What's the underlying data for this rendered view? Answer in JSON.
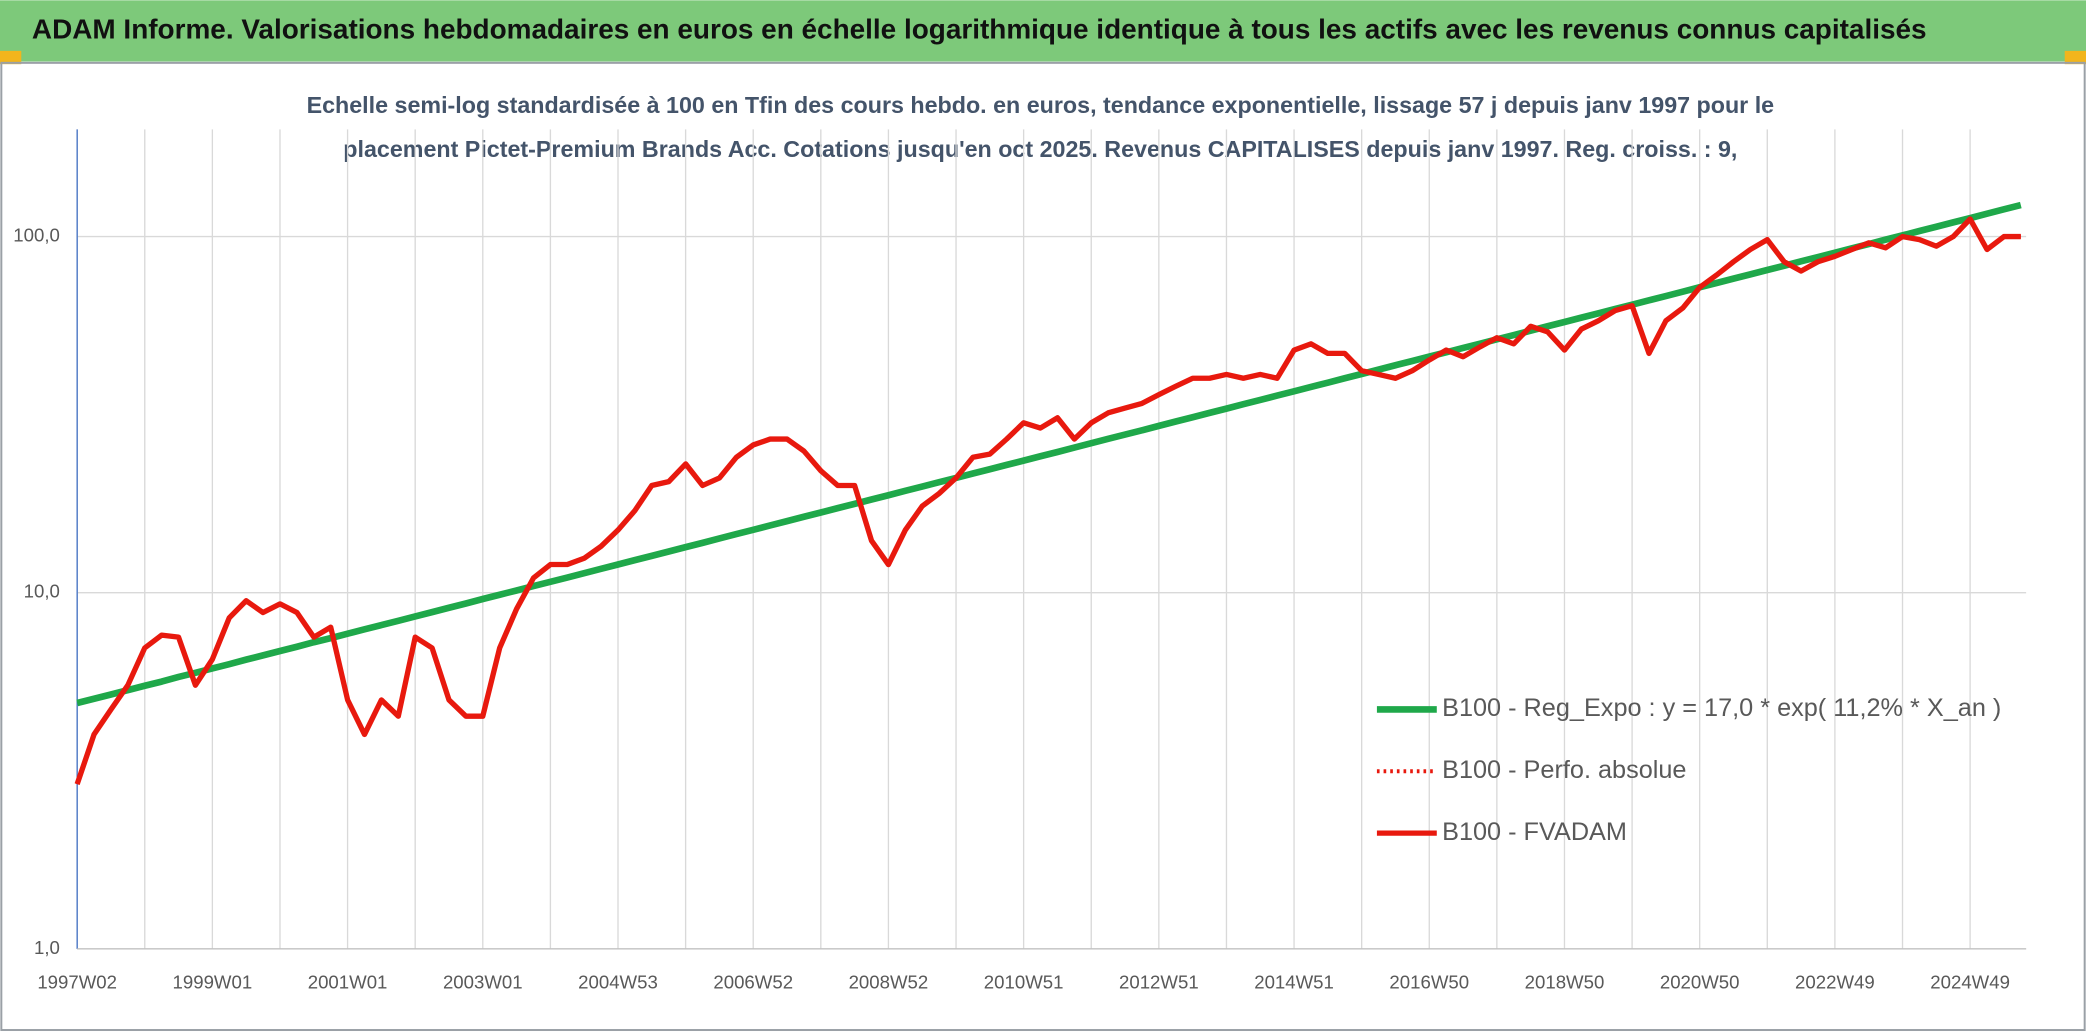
{
  "chart_data": {
    "type": "line",
    "title": "ADAM Informe. Valorisations hebdomadaires en euros en échelle logarithmique identique à tous les actifs avec les revenus connus capitalisés",
    "subtitle_lines": [
      "Echelle semi-log standardisée à 100 en Tfin des cours hebdo. en euros, tendance exponentielle, lissage 57 j depuis janv 1997 pour le",
      "placement Pictet-Premium Brands Acc. Cotations jusqu'en oct 2025. Revenus CAPITALISES depuis janv 1997. Reg. croiss. : 9,"
    ],
    "log_scale": true,
    "grid": true,
    "legend_position": "lower right",
    "ylim": [
      1,
      200
    ],
    "yticks": [
      {
        "value": 1,
        "label": "1,0"
      },
      {
        "value": 10,
        "label": "10,0"
      },
      {
        "value": 100,
        "label": "100,0"
      }
    ],
    "categories": [
      "1997W02",
      null,
      null,
      null,
      null,
      null,
      null,
      null,
      "1999W01",
      null,
      null,
      null,
      null,
      null,
      null,
      null,
      "2001W01",
      null,
      null,
      null,
      null,
      null,
      null,
      null,
      "2003W01",
      null,
      null,
      null,
      null,
      null,
      null,
      null,
      "2004W53",
      null,
      null,
      null,
      null,
      null,
      null,
      null,
      "2006W52",
      null,
      null,
      null,
      null,
      null,
      null,
      null,
      "2008W52",
      null,
      null,
      null,
      null,
      null,
      null,
      null,
      "2010W51",
      null,
      null,
      null,
      null,
      null,
      null,
      null,
      "2012W51",
      null,
      null,
      null,
      null,
      null,
      null,
      null,
      "2014W51",
      null,
      null,
      null,
      null,
      null,
      null,
      null,
      "2016W50",
      null,
      null,
      null,
      null,
      null,
      null,
      null,
      "2018W50",
      null,
      null,
      null,
      null,
      null,
      null,
      null,
      "2020W50",
      null,
      null,
      null,
      null,
      null,
      null,
      null,
      "2022W49",
      null,
      null,
      null,
      null,
      null,
      null,
      null,
      "2024W49",
      null,
      null,
      null
    ],
    "series": [
      {
        "name": "B100 - Reg_Expo : y = 17,0 * exp( 11,2% *  X_an )",
        "color": "#1fa84a",
        "style": "solid",
        "width": 5,
        "values": [
          4.9,
          5.04,
          5.18,
          5.33,
          5.48,
          5.63,
          5.8,
          5.96,
          6.13,
          6.3,
          6.49,
          6.67,
          6.86,
          7.05,
          7.26,
          7.46,
          7.67,
          7.89,
          8.11,
          8.34,
          8.58,
          8.82,
          9.07,
          9.33,
          9.6,
          9.87,
          10.15,
          10.44,
          10.73,
          11.03,
          11.35,
          11.67,
          12.0,
          12.34,
          12.69,
          13.05,
          13.43,
          13.81,
          14.2,
          14.61,
          15.02,
          15.45,
          15.89,
          16.34,
          16.8,
          17.28,
          17.77,
          18.27,
          18.79,
          19.32,
          19.87,
          20.44,
          21.01,
          21.61,
          22.22,
          22.85,
          23.5,
          24.17,
          24.85,
          25.56,
          26.29,
          27.04,
          27.8,
          28.59,
          29.4,
          30.24,
          31.09,
          31.98,
          32.89,
          33.82,
          34.78,
          35.77,
          36.78,
          37.83,
          38.9,
          40.0,
          41.14,
          42.31,
          43.51,
          44.74,
          46.02,
          47.33,
          48.67,
          50.05,
          51.47,
          52.93,
          54.44,
          55.98,
          57.57,
          59.21,
          60.89,
          62.61,
          64.39,
          66.22,
          68.1,
          70.03,
          72.02,
          74.07,
          76.17,
          78.33,
          80.56,
          82.85,
          85.2,
          87.62,
          90.11,
          92.67,
          95.3,
          98.0,
          100.78,
          103.64,
          106.59,
          109.61,
          112.73,
          115.94,
          119.23,
          122.62
        ]
      },
      {
        "name": "B100 - Perfo. absolue",
        "color": "#e8190e",
        "style": "dotted",
        "width": 3,
        "values": [
          2.9,
          4.0,
          4.7,
          5.5,
          7.0,
          7.6,
          7.5,
          5.5,
          6.5,
          8.5,
          9.5,
          8.8,
          9.3,
          8.8,
          7.5,
          8.0,
          5.0,
          4.0,
          5.0,
          4.5,
          7.5,
          7.0,
          5.0,
          4.5,
          4.5,
          7.0,
          9.0,
          11.0,
          12.0,
          12.0,
          12.5,
          13.5,
          15.0,
          17.0,
          20.0,
          20.5,
          23.0,
          20.0,
          21.0,
          24.0,
          26.0,
          27.0,
          27.0,
          25.0,
          22.0,
          20.0,
          20.0,
          14.0,
          12.0,
          15.0,
          17.5,
          19.0,
          21.0,
          24.0,
          24.5,
          27.0,
          30.0,
          29.0,
          31.0,
          27.0,
          30.0,
          32.0,
          33.0,
          34.0,
          36.0,
          38.0,
          40.0,
          40.0,
          41.0,
          40.0,
          41.0,
          40.0,
          48.0,
          50.0,
          47.0,
          47.0,
          42.0,
          41.0,
          40.0,
          42.0,
          45.0,
          48.0,
          46.0,
          49.0,
          52.0,
          50.0,
          56.0,
          54.0,
          48.0,
          55.0,
          58.0,
          62.0,
          64.0,
          47.0,
          58.0,
          63.0,
          72.0,
          78.0,
          85.0,
          92.0,
          98.0,
          85.0,
          80.0,
          85.0,
          88.0,
          92.0,
          96.0,
          93.0,
          100.0,
          98.0,
          94.0,
          100.0,
          112.0,
          92.0,
          100.0,
          100.0
        ]
      },
      {
        "name": "B100 - FVADAM",
        "color": "#e8190e",
        "style": "solid",
        "width": 4,
        "values": [
          2.9,
          4.0,
          4.7,
          5.5,
          7.0,
          7.6,
          7.5,
          5.5,
          6.5,
          8.5,
          9.5,
          8.8,
          9.3,
          8.8,
          7.5,
          8.0,
          5.0,
          4.0,
          5.0,
          4.5,
          7.5,
          7.0,
          5.0,
          4.5,
          4.5,
          7.0,
          9.0,
          11.0,
          12.0,
          12.0,
          12.5,
          13.5,
          15.0,
          17.0,
          20.0,
          20.5,
          23.0,
          20.0,
          21.0,
          24.0,
          26.0,
          27.0,
          27.0,
          25.0,
          22.0,
          20.0,
          20.0,
          14.0,
          12.0,
          15.0,
          17.5,
          19.0,
          21.0,
          24.0,
          24.5,
          27.0,
          30.0,
          29.0,
          31.0,
          27.0,
          30.0,
          32.0,
          33.0,
          34.0,
          36.0,
          38.0,
          40.0,
          40.0,
          41.0,
          40.0,
          41.0,
          40.0,
          48.0,
          50.0,
          47.0,
          47.0,
          42.0,
          41.0,
          40.0,
          42.0,
          45.0,
          48.0,
          46.0,
          49.0,
          52.0,
          50.0,
          56.0,
          54.0,
          48.0,
          55.0,
          58.0,
          62.0,
          64.0,
          47.0,
          58.0,
          63.0,
          72.0,
          78.0,
          85.0,
          92.0,
          98.0,
          85.0,
          80.0,
          85.0,
          88.0,
          92.0,
          96.0,
          93.0,
          100.0,
          98.0,
          94.0,
          100.0,
          112.0,
          92.0,
          100.0,
          100.0
        ]
      }
    ]
  }
}
